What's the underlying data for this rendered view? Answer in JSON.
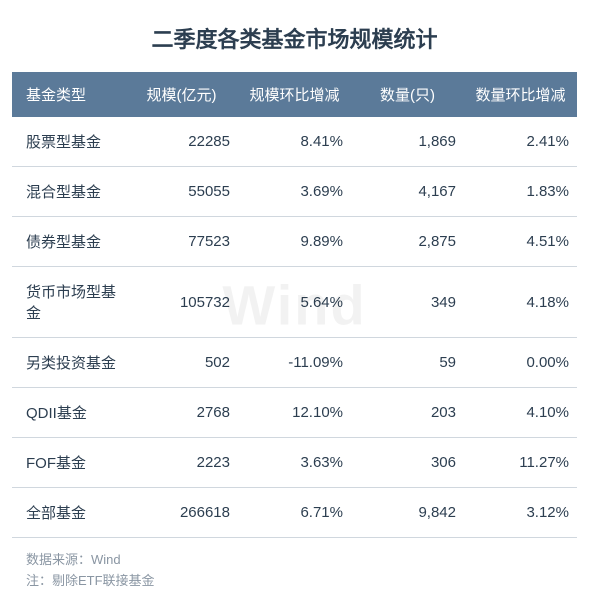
{
  "title": "二季度各类基金市场规模统计",
  "watermark": "Wind",
  "columns": [
    "基金类型",
    "规模(亿元)",
    "规模环比增减",
    "数量(只)",
    "数量环比增减"
  ],
  "rows": [
    {
      "type": "股票型基金",
      "scale": "22285",
      "scale_chg": "8.41%",
      "count": "1,869",
      "count_chg": "2.41%"
    },
    {
      "type": "混合型基金",
      "scale": "55055",
      "scale_chg": "3.69%",
      "count": "4,167",
      "count_chg": "1.83%"
    },
    {
      "type": "债券型基金",
      "scale": "77523",
      "scale_chg": "9.89%",
      "count": "2,875",
      "count_chg": "4.51%"
    },
    {
      "type": "货币市场型基金",
      "scale": "105732",
      "scale_chg": "5.64%",
      "count": "349",
      "count_chg": "4.18%"
    },
    {
      "type": "另类投资基金",
      "scale": "502",
      "scale_chg": "-11.09%",
      "count": "59",
      "count_chg": "0.00%"
    },
    {
      "type": "QDII基金",
      "scale": "2768",
      "scale_chg": "12.10%",
      "count": "203",
      "count_chg": "4.10%"
    },
    {
      "type": "FOF基金",
      "scale": "2223",
      "scale_chg": "3.63%",
      "count": "306",
      "count_chg": "11.27%"
    },
    {
      "type": "全部基金",
      "scale": "266618",
      "scale_chg": "6.71%",
      "count": "9,842",
      "count_chg": "3.12%"
    }
  ],
  "footer": {
    "source": "数据来源：Wind",
    "note": "注：剔除ETF联接基金"
  },
  "style": {
    "header_bg": "#5b7a99",
    "header_fg": "#ffffff",
    "row_border": "#d0d7de",
    "text_color": "#2c3e50",
    "footer_color": "#8a96a3",
    "title_fontsize": 22,
    "cell_fontsize": 15,
    "footer_fontsize": 13
  }
}
